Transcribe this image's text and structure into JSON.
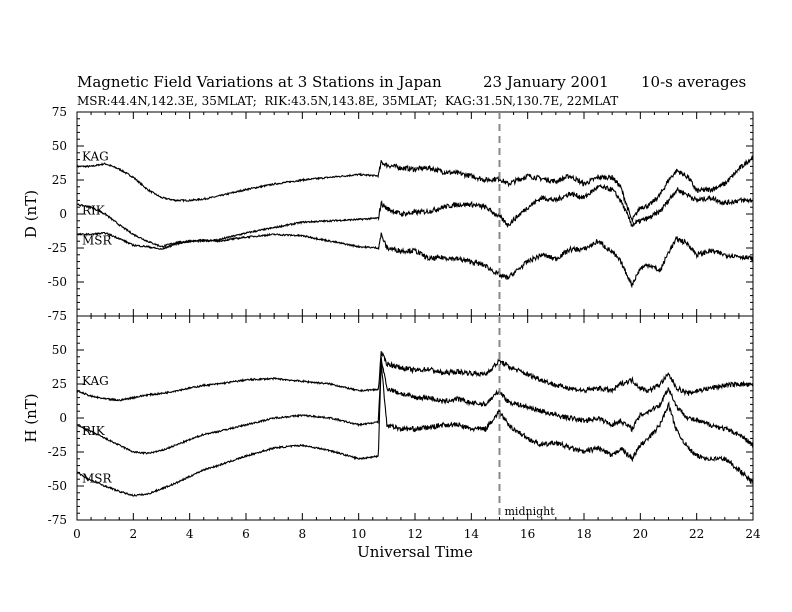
{
  "header": {
    "title": "Magnetic Field Variations at 3 Stations in Japan",
    "date": "23 January 2001",
    "averaging": "10-s averages",
    "stations": "MSR:44.4N,142.3E, 35MLAT;  RIK:43.5N,143.8E, 35MLAT;  KAG:31.5N,130.7E, 22MLAT"
  },
  "chart_data": [
    {
      "type": "line",
      "ylabel": "D (nT)",
      "ylim": [
        -75,
        75
      ],
      "yticks": [
        75,
        50,
        25,
        0,
        -25,
        -50,
        -75
      ],
      "xlim": [
        0,
        24
      ],
      "grid": false,
      "series": [
        {
          "name": "KAG",
          "x": [
            0,
            0.5,
            1,
            1.5,
            2,
            2.5,
            3,
            3.5,
            4,
            4.5,
            5,
            6,
            7,
            8,
            9,
            10,
            10.7,
            10.8,
            11,
            11.5,
            12,
            12.5,
            13,
            13.5,
            14,
            14.5,
            15,
            15.3,
            16,
            16.5,
            17,
            17.5,
            18,
            18.5,
            19,
            19.3,
            19.7,
            20,
            20.3,
            20.7,
            21,
            21.3,
            21.7,
            22,
            22.5,
            23,
            23.5,
            24
          ],
          "y": [
            35,
            35,
            37,
            33,
            27,
            18,
            12,
            10,
            10,
            11,
            13,
            18,
            22,
            25,
            27,
            29,
            28,
            38,
            36,
            34,
            33,
            34,
            31,
            30,
            28,
            25,
            26,
            22,
            28,
            26,
            24,
            28,
            22,
            27,
            27,
            20,
            -5,
            5,
            6,
            14,
            25,
            32,
            27,
            17,
            18,
            22,
            33,
            42
          ]
        },
        {
          "name": "RIK",
          "x": [
            0,
            0.5,
            1,
            1.5,
            2,
            2.5,
            3,
            3.5,
            4,
            4.5,
            5,
            6,
            7,
            8,
            9,
            10,
            10.7,
            10.8,
            11,
            11.5,
            12,
            12.5,
            13,
            13.5,
            14,
            14.5,
            15,
            15.3,
            16,
            16.5,
            17,
            17.5,
            18,
            18.5,
            19,
            19.3,
            19.7,
            20,
            20.3,
            20.7,
            21,
            21.3,
            21.7,
            22,
            22.5,
            23,
            23.5,
            24
          ],
          "y": [
            7,
            5,
            0,
            -8,
            -15,
            -20,
            -24,
            -21,
            -20,
            -20,
            -19,
            -14,
            -10,
            -6,
            -5,
            -4,
            -3,
            8,
            4,
            0,
            1,
            2,
            5,
            7,
            7,
            5,
            -2,
            -8,
            5,
            12,
            10,
            15,
            12,
            20,
            18,
            10,
            -8,
            -5,
            -3,
            2,
            10,
            18,
            14,
            10,
            12,
            8,
            10,
            10
          ]
        },
        {
          "name": "MSR",
          "x": [
            0,
            0.5,
            1,
            1.5,
            2,
            2.5,
            3,
            3.5,
            4,
            4.5,
            5,
            6,
            7,
            8,
            9,
            10,
            10.7,
            10.8,
            11,
            11.5,
            12,
            12.5,
            13,
            13.5,
            14,
            14.5,
            15,
            15.3,
            16,
            16.5,
            17,
            17.5,
            18,
            18.5,
            19,
            19.3,
            19.7,
            20,
            20.3,
            20.7,
            21,
            21.3,
            21.7,
            22,
            22.5,
            23,
            23.5,
            24
          ],
          "y": [
            -15,
            -15,
            -14,
            -18,
            -23,
            -24,
            -26,
            -22,
            -20,
            -19,
            -20,
            -17,
            -15,
            -16,
            -20,
            -24,
            -25,
            -15,
            -25,
            -27,
            -27,
            -33,
            -32,
            -33,
            -35,
            -38,
            -45,
            -47,
            -35,
            -30,
            -33,
            -26,
            -26,
            -20,
            -28,
            -35,
            -52,
            -40,
            -37,
            -42,
            -28,
            -18,
            -22,
            -30,
            -27,
            -30,
            -31,
            -33
          ]
        }
      ]
    },
    {
      "type": "line",
      "ylabel": "H (nT)",
      "xlabel": "Universal Time",
      "ylim": [
        -75,
        75
      ],
      "yticks": [
        50,
        25,
        0,
        -25,
        -50,
        -75
      ],
      "xlim": [
        0,
        24
      ],
      "xticks": [
        0,
        2,
        4,
        6,
        8,
        10,
        12,
        14,
        16,
        18,
        20,
        22,
        24
      ],
      "grid": false,
      "series": [
        {
          "name": "KAG",
          "x": [
            0,
            0.5,
            1,
            1.5,
            2,
            2.5,
            3,
            3.5,
            4,
            4.5,
            5,
            6,
            7,
            8,
            9,
            10,
            10.7,
            10.8,
            11,
            11.5,
            12,
            12.5,
            13,
            13.5,
            14,
            14.5,
            15,
            15.3,
            16,
            16.5,
            17,
            17.5,
            18,
            18.5,
            19,
            19.3,
            19.7,
            20,
            20.3,
            20.7,
            21,
            21.3,
            21.7,
            22,
            22.5,
            23,
            23.5,
            24
          ],
          "y": [
            20,
            16,
            14,
            13,
            15,
            17,
            18,
            20,
            22,
            24,
            25,
            28,
            29,
            27,
            25,
            20,
            21,
            48,
            40,
            37,
            35,
            36,
            33,
            34,
            33,
            32,
            42,
            38,
            32,
            28,
            24,
            22,
            20,
            22,
            20,
            25,
            28,
            22,
            20,
            25,
            32,
            22,
            18,
            20,
            22,
            24,
            25,
            24
          ]
        },
        {
          "name": "RIK",
          "x": [
            0,
            0.5,
            1,
            1.5,
            2,
            2.5,
            3,
            3.5,
            4,
            4.5,
            5,
            6,
            7,
            8,
            9,
            10,
            10.7,
            10.8,
            11,
            11.5,
            12,
            12.5,
            13,
            13.5,
            14,
            14.5,
            15,
            15.3,
            16,
            16.5,
            17,
            17.5,
            18,
            18.5,
            19,
            19.3,
            19.7,
            20,
            20.3,
            20.7,
            21,
            21.3,
            21.7,
            22,
            22.5,
            23,
            23.5,
            24
          ],
          "y": [
            -5,
            -10,
            -15,
            -20,
            -25,
            -26,
            -24,
            -20,
            -16,
            -12,
            -10,
            -5,
            0,
            2,
            0,
            -5,
            -3,
            44,
            22,
            18,
            15,
            15,
            12,
            14,
            11,
            10,
            20,
            12,
            8,
            5,
            2,
            0,
            -2,
            0,
            -5,
            -2,
            -8,
            2,
            5,
            10,
            22,
            8,
            0,
            -2,
            -5,
            -8,
            -12,
            -20
          ]
        },
        {
          "name": "MSR",
          "x": [
            0,
            0.5,
            1,
            1.5,
            2,
            2.5,
            3,
            3.5,
            4,
            4.5,
            5,
            6,
            7,
            8,
            9,
            10,
            10.7,
            10.8,
            11,
            11.5,
            12,
            12.5,
            13,
            13.5,
            14,
            14.5,
            15,
            15.3,
            16,
            16.5,
            17,
            17.5,
            18,
            18.5,
            19,
            19.3,
            19.7,
            20,
            20.3,
            20.7,
            21,
            21.3,
            21.7,
            22,
            22.5,
            23,
            23.5,
            24
          ],
          "y": [
            -40,
            -46,
            -50,
            -54,
            -57,
            -56,
            -52,
            -48,
            -43,
            -38,
            -35,
            -28,
            -22,
            -20,
            -24,
            -30,
            -28,
            42,
            -5,
            -8,
            -8,
            -7,
            -5,
            -5,
            -8,
            -8,
            5,
            -5,
            -15,
            -20,
            -18,
            -22,
            -25,
            -22,
            -28,
            -22,
            -30,
            -20,
            -15,
            -5,
            10,
            -10,
            -22,
            -28,
            -30,
            -30,
            -38,
            -48
          ]
        }
      ]
    }
  ],
  "annotations": {
    "midnight_label": "midnight",
    "midnight_ut": 15
  }
}
